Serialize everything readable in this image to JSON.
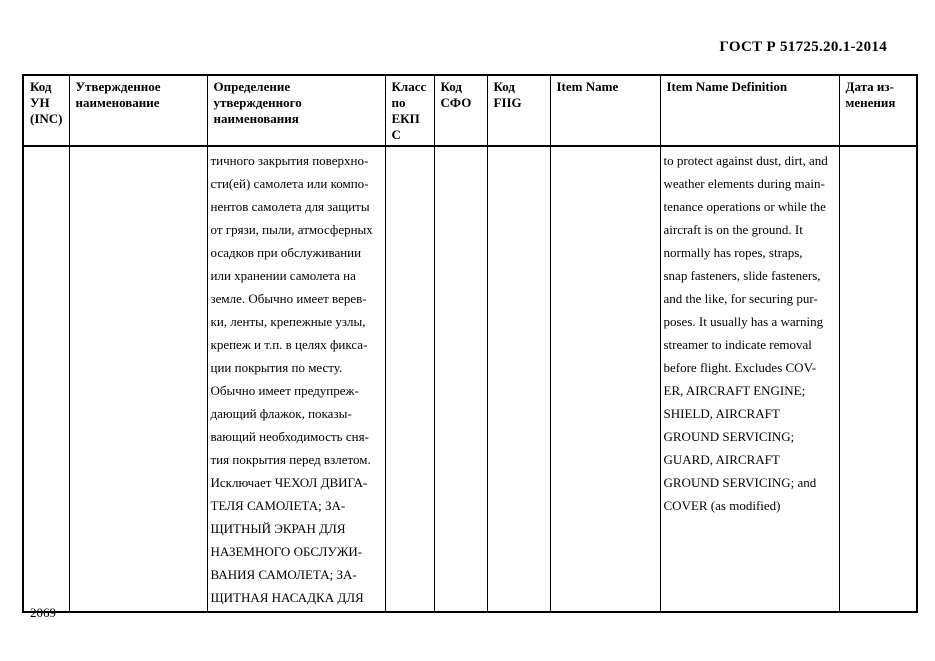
{
  "header": {
    "title": "ГОСТ Р 51725.20.1-2014"
  },
  "table": {
    "headers": [
      {
        "id": "inc-code",
        "lines": [
          "Код",
          "УН",
          "(INC)"
        ]
      },
      {
        "id": "approved-name",
        "lines": [
          "Утвержденное",
          "наименование"
        ]
      },
      {
        "id": "approved-definition",
        "lines": [
          "Определение",
          "утвержденного",
          "наименования"
        ]
      },
      {
        "id": "ekps-class",
        "lines": [
          "Класс",
          "по",
          "ЕКП",
          "С"
        ]
      },
      {
        "id": "sfo-code",
        "lines": [
          "Код",
          "СФО"
        ]
      },
      {
        "id": "fiig-code",
        "lines": [
          "Код",
          "FIIG"
        ]
      },
      {
        "id": "item-name",
        "lines": [
          "Item Name"
        ]
      },
      {
        "id": "item-name-definition",
        "lines": [
          "Item Name Definition"
        ]
      },
      {
        "id": "change-date",
        "lines": [
          "Дата из-",
          "менения"
        ]
      }
    ],
    "row": {
      "inc_code": "",
      "approved_name": "",
      "definition_ru": [
        "тичного закрытия поверхно-",
        "сти(ей) самолета или компо-",
        "нентов самолета для защиты",
        "от грязи, пыли, атмосферных",
        "осадков при обслуживании",
        "или хранении самолета на",
        "земле. Обычно имеет верев-",
        "ки, ленты, крепежные узлы,",
        "крепеж и т.п. в целях фикса-",
        "ции покрытия по месту.",
        "Обычно имеет предупреж-",
        "дающий флажок, показы-",
        "вающий необходимость сня-",
        "тия покрытия перед взлетом.",
        "Исключает ЧЕХОЛ ДВИГА-",
        "ТЕЛЯ САМОЛЕТА; ЗА-",
        "ЩИТНЫЙ ЭКРАН ДЛЯ",
        "НАЗЕМНОГО ОБСЛУЖИ-",
        "ВАНИЯ САМОЛЕТА; ЗА-",
        "ЩИТНАЯ НАСАДКА ДЛЯ"
      ],
      "ekps_class": "",
      "sfo_code": "",
      "fiig_code": "",
      "item_name": "",
      "item_name_definition_en": [
        "to protect against dust, dirt, and",
        "weather elements during main-",
        "tenance operations or while the",
        "aircraft is on the ground. It",
        "normally has ropes, straps,",
        "snap fasteners, slide fasteners,",
        "and the like, for securing pur-",
        "poses. It usually has a warning",
        "streamer to indicate removal",
        "before flight. Excludes COV-",
        "ER, AIRCRAFT ENGINE;",
        "SHIELD, AIRCRAFT",
        "GROUND SERVICING;",
        "GUARD, AIRCRAFT",
        "GROUND SERVICING; and",
        "COVER (as modified)"
      ]
    }
  },
  "footer": {
    "page_number": "2069"
  }
}
